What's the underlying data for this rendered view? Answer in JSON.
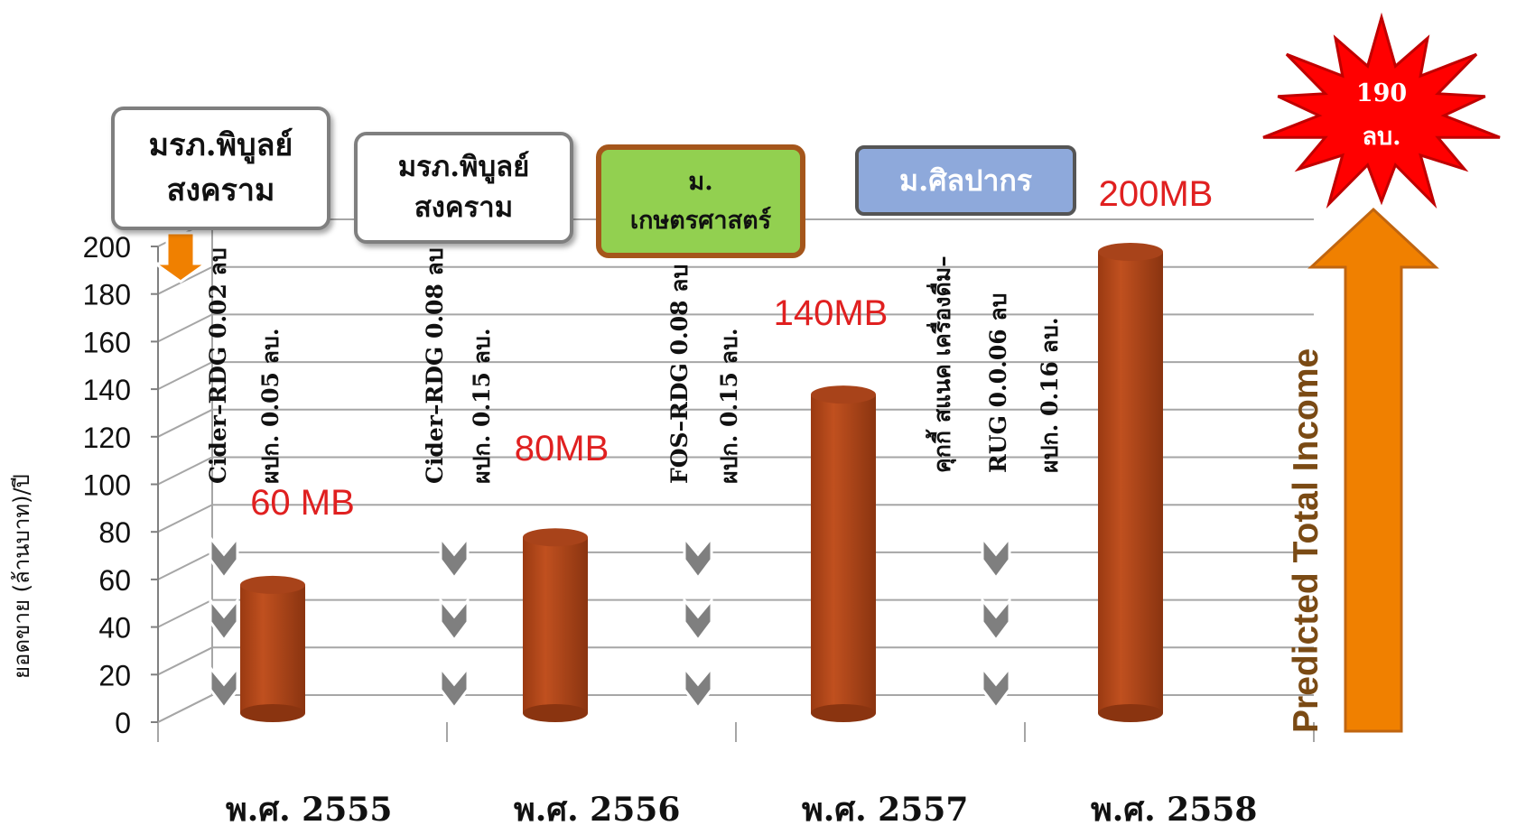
{
  "chart_data": {
    "type": "bar",
    "categories": [
      "พ.ศ. 2555",
      "พ.ศ. 2556",
      "พ.ศ. 2557",
      "พ.ศ. 2558"
    ],
    "values": [
      60,
      80,
      140,
      200
    ],
    "data_labels": [
      "60 MB",
      "80MB",
      "140MB",
      "200MB"
    ],
    "ylabel": "ยอดขาย (ล้านบาท)/ปี",
    "ylim": [
      0,
      200
    ],
    "yticks": [
      0,
      20,
      40,
      60,
      80,
      100,
      120,
      140,
      160,
      180,
      200
    ],
    "grid": true,
    "bar_color": "#c0501f",
    "label_color": "#e02020"
  },
  "partners": [
    {
      "lines": [
        "มรภ.พิบูลย์",
        "สงคราม"
      ]
    },
    {
      "lines": [
        "มรภ.พิบูลย์",
        "สงคราม"
      ]
    },
    {
      "lines": [
        "ม.",
        "เกษตรศาสตร์"
      ]
    },
    {
      "lines": [
        "ม.ศิลปากร"
      ]
    }
  ],
  "product_notes": [
    {
      "product": "Cider–RDG 0.02 ลบ",
      "budget": "ผปก. 0.05 ลบ."
    },
    {
      "product": "Cider–RDG 0.08  ลบ",
      "budget": "ผปก. 0.15 ลบ."
    },
    {
      "product": "FOS–RDG 0.08  ลบ",
      "budget": "ผปก. 0.15 ลบ."
    },
    {
      "product_title": "คุกกี้ สแนค เครื่องดื่ม–",
      "product": "RUG 0.0.06  ลบ",
      "budget": "ผปก. 0.16  ลบ."
    }
  ],
  "predicted_label": "Predicted Total Income",
  "star": {
    "value": "190",
    "unit": "ลบ.",
    "color": "#ff0000"
  },
  "arrow_color": "#f08000"
}
